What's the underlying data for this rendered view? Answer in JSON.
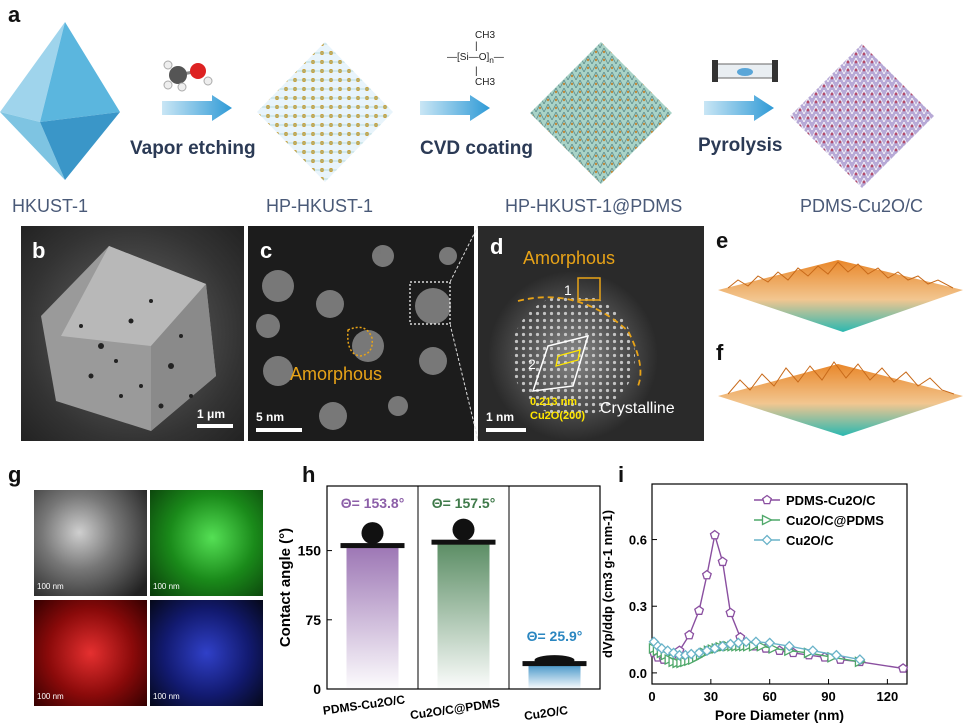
{
  "panels": {
    "a": "a",
    "b": "b",
    "c": "c",
    "d": "d",
    "e": "e",
    "f": "f",
    "g": "g",
    "h": "h",
    "i": "i"
  },
  "schematic": {
    "steps": [
      "Vapor etching",
      "CVD coating",
      "Pyrolysis"
    ],
    "materials": [
      "HKUST-1",
      "HP-HKUST-1",
      "HP-HKUST-1@PDMS",
      "PDMS-Cu2O/C"
    ],
    "pdms_formula": {
      "ch3_top": "CH3",
      "si": "Si",
      "o": "O",
      "n": "n",
      "ch3_bottom": "CH3"
    }
  },
  "sem": {
    "scale_bar": "1 μm"
  },
  "tem": {
    "scale_bar": "5 nm",
    "label": "Amorphous"
  },
  "hrtem": {
    "scale_bar": "1 nm",
    "amorphous": "Amorphous",
    "crystalline": "Crystalline",
    "region1": "1",
    "region2": "2",
    "d_spacing": "0.213 nm",
    "plane": "Cu2O(200)"
  },
  "mapping": {
    "scale_bars": [
      "100 nm",
      "100 nm",
      "100 nm",
      "100 nm"
    ],
    "tile_colors": [
      "#d8d8d8",
      "#3fd13f",
      "#e01818",
      "#2a39c8"
    ]
  },
  "chart_data": [
    {
      "type": "bar",
      "panel": "h",
      "categories": [
        "PDMS-Cu2O/C",
        "Cu2O/C@PDMS",
        "Cu2O/C"
      ],
      "values": [
        153.8,
        157.5,
        25.9
      ],
      "value_labels": [
        "Θ= 153.8°",
        "Θ= 157.5°",
        "Θ= 25.9°"
      ],
      "colors": [
        "#8c5fa8",
        "#3f7a4a",
        "#2a86c0"
      ],
      "ylabel": "Contact angle (°)",
      "yticks": [
        0,
        75,
        150
      ],
      "ylim": [
        0,
        220
      ]
    },
    {
      "type": "line",
      "panel": "i",
      "xlabel": "Pore Diameter (nm)",
      "ylabel": "dVp/ddp (cm3 g-1 nm-1)",
      "xlim": [
        0,
        130
      ],
      "ylim": [
        -0.05,
        0.85
      ],
      "xticks": [
        0,
        30,
        60,
        90,
        120
      ],
      "yticks": [
        0.0,
        0.3,
        0.6
      ],
      "legend_position": "top-right",
      "series": [
        {
          "name": "PDMS-Cu2O/C",
          "color": "#8a4fa0",
          "marker": "pentagon",
          "x": [
            1,
            3,
            6,
            10,
            14,
            19,
            24,
            28,
            32,
            36,
            40,
            45,
            52,
            58,
            65,
            72,
            80,
            88,
            96,
            106,
            128
          ],
          "y": [
            0.09,
            0.07,
            0.06,
            0.07,
            0.1,
            0.17,
            0.28,
            0.44,
            0.62,
            0.5,
            0.27,
            0.16,
            0.12,
            0.11,
            0.1,
            0.09,
            0.08,
            0.07,
            0.06,
            0.05,
            0.02
          ]
        },
        {
          "name": "Cu2O/C@PDMS",
          "color": "#4fa86a",
          "marker": "triangle-right",
          "x": [
            1,
            3,
            5,
            7,
            9,
            11,
            13,
            15,
            17,
            19,
            21,
            23,
            25,
            27,
            29,
            31,
            33,
            35,
            37,
            39,
            41,
            43,
            45,
            47,
            49,
            52,
            56,
            62,
            70,
            80,
            92,
            106
          ],
          "y": [
            0.11,
            0.1,
            0.09,
            0.08,
            0.06,
            0.05,
            0.045,
            0.045,
            0.05,
            0.055,
            0.06,
            0.07,
            0.08,
            0.09,
            0.1,
            0.105,
            0.11,
            0.115,
            0.12,
            0.12,
            0.12,
            0.12,
            0.12,
            0.12,
            0.12,
            0.12,
            0.12,
            0.11,
            0.1,
            0.09,
            0.07,
            0.05
          ]
        },
        {
          "name": "Cu2O/C",
          "color": "#6ab3c9",
          "marker": "diamond",
          "x": [
            1,
            3,
            5,
            8,
            11,
            14,
            17,
            20,
            24,
            28,
            32,
            36,
            40,
            44,
            48,
            53,
            60,
            70,
            82,
            94,
            106
          ],
          "y": [
            0.14,
            0.12,
            0.11,
            0.1,
            0.09,
            0.08,
            0.08,
            0.085,
            0.09,
            0.1,
            0.11,
            0.12,
            0.13,
            0.135,
            0.14,
            0.14,
            0.135,
            0.12,
            0.1,
            0.08,
            0.06
          ]
        }
      ]
    }
  ]
}
